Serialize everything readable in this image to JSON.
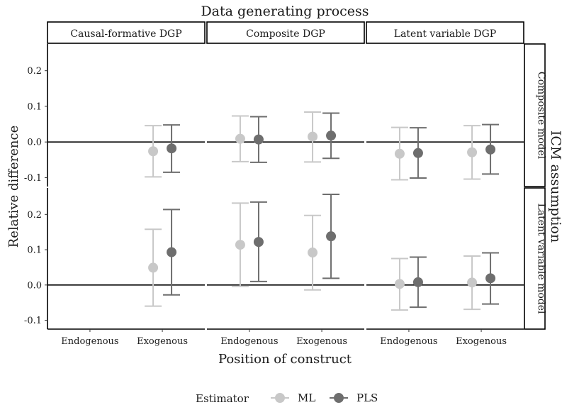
{
  "chart_data": {
    "type": "scatter",
    "subtype": "point-errorbar-faceted",
    "title": "Data generating process",
    "xlabel": "Position of construct",
    "ylabel": "Relative difference",
    "right_strip_title": "ICM assumption",
    "col_facets": [
      "Causal-formative DGP",
      "Composite DGP",
      "Latent variable DGP"
    ],
    "row_facets": [
      "Composite model",
      "Latent variable model"
    ],
    "categories": [
      "Endogenous",
      "Exogenous"
    ],
    "y_ticks": [
      -0.1,
      0.0,
      0.1,
      0.2
    ],
    "ylim": [
      -0.125,
      0.275
    ],
    "reference_line": 0,
    "grid": false,
    "legend": {
      "title": "Estimator",
      "position": "bottom",
      "entries": [
        {
          "name": "ML",
          "color": "#c8c8c8"
        },
        {
          "name": "PLS",
          "color": "#6e6e6e"
        }
      ]
    },
    "colors": {
      "ML": "#c8c8c8",
      "PLS": "#6e6e6e"
    },
    "points": [
      {
        "row": 0,
        "col": 0,
        "category": "Exogenous",
        "estimator": "ML",
        "y": -0.026,
        "lower": -0.098,
        "upper": 0.046
      },
      {
        "row": 0,
        "col": 0,
        "category": "Exogenous",
        "estimator": "PLS",
        "y": -0.018,
        "lower": -0.085,
        "upper": 0.048
      },
      {
        "row": 0,
        "col": 1,
        "category": "Endogenous",
        "estimator": "ML",
        "y": 0.009,
        "lower": -0.055,
        "upper": 0.073
      },
      {
        "row": 0,
        "col": 1,
        "category": "Endogenous",
        "estimator": "PLS",
        "y": 0.007,
        "lower": -0.057,
        "upper": 0.071
      },
      {
        "row": 0,
        "col": 1,
        "category": "Exogenous",
        "estimator": "ML",
        "y": 0.015,
        "lower": -0.056,
        "upper": 0.084
      },
      {
        "row": 0,
        "col": 1,
        "category": "Exogenous",
        "estimator": "PLS",
        "y": 0.018,
        "lower": -0.046,
        "upper": 0.081
      },
      {
        "row": 0,
        "col": 2,
        "category": "Endogenous",
        "estimator": "ML",
        "y": -0.033,
        "lower": -0.106,
        "upper": 0.041
      },
      {
        "row": 0,
        "col": 2,
        "category": "Endogenous",
        "estimator": "PLS",
        "y": -0.031,
        "lower": -0.101,
        "upper": 0.04
      },
      {
        "row": 0,
        "col": 2,
        "category": "Exogenous",
        "estimator": "ML",
        "y": -0.029,
        "lower": -0.104,
        "upper": 0.046
      },
      {
        "row": 0,
        "col": 2,
        "category": "Exogenous",
        "estimator": "PLS",
        "y": -0.021,
        "lower": -0.09,
        "upper": 0.049
      },
      {
        "row": 1,
        "col": 0,
        "category": "Exogenous",
        "estimator": "ML",
        "y": 0.049,
        "lower": -0.06,
        "upper": 0.158
      },
      {
        "row": 1,
        "col": 0,
        "category": "Exogenous",
        "estimator": "PLS",
        "y": 0.093,
        "lower": -0.028,
        "upper": 0.214
      },
      {
        "row": 1,
        "col": 1,
        "category": "Endogenous",
        "estimator": "ML",
        "y": 0.114,
        "lower": -0.004,
        "upper": 0.232
      },
      {
        "row": 1,
        "col": 1,
        "category": "Endogenous",
        "estimator": "PLS",
        "y": 0.122,
        "lower": 0.01,
        "upper": 0.235
      },
      {
        "row": 1,
        "col": 1,
        "category": "Exogenous",
        "estimator": "ML",
        "y": 0.092,
        "lower": -0.014,
        "upper": 0.197
      },
      {
        "row": 1,
        "col": 1,
        "category": "Exogenous",
        "estimator": "PLS",
        "y": 0.138,
        "lower": 0.019,
        "upper": 0.257
      },
      {
        "row": 1,
        "col": 2,
        "category": "Endogenous",
        "estimator": "ML",
        "y": 0.003,
        "lower": -0.071,
        "upper": 0.075
      },
      {
        "row": 1,
        "col": 2,
        "category": "Endogenous",
        "estimator": "PLS",
        "y": 0.008,
        "lower": -0.063,
        "upper": 0.079
      },
      {
        "row": 1,
        "col": 2,
        "category": "Exogenous",
        "estimator": "ML",
        "y": 0.007,
        "lower": -0.069,
        "upper": 0.082
      },
      {
        "row": 1,
        "col": 2,
        "category": "Exogenous",
        "estimator": "PLS",
        "y": 0.019,
        "lower": -0.054,
        "upper": 0.091
      }
    ]
  }
}
